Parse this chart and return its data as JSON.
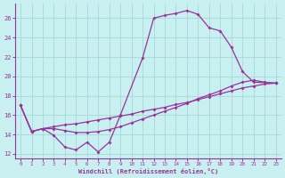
{
  "xlabel": "Windchill (Refroidissement éolien,°C)",
  "bg_color": "#c8f0f0",
  "grid_color": "#a8d8d8",
  "line_color": "#993399",
  "xlim": [
    -0.5,
    23.5
  ],
  "ylim": [
    11.5,
    27.5
  ],
  "yticks": [
    12,
    14,
    16,
    18,
    20,
    22,
    24,
    26
  ],
  "xticks": [
    0,
    1,
    2,
    3,
    4,
    5,
    6,
    7,
    8,
    9,
    10,
    11,
    12,
    13,
    14,
    15,
    16,
    17,
    18,
    19,
    20,
    21,
    22,
    23
  ],
  "curve1_x": [
    0,
    1,
    2,
    3,
    4,
    5,
    6,
    7,
    8,
    9,
    11,
    12,
    13,
    14,
    15,
    16,
    17,
    18,
    19,
    20,
    21,
    23
  ],
  "curve1_y": [
    17.0,
    14.3,
    14.6,
    13.9,
    12.7,
    12.4,
    13.2,
    12.2,
    13.2,
    16.0,
    21.9,
    26.0,
    26.3,
    26.5,
    26.8,
    26.4,
    25.0,
    24.7,
    23.0,
    20.5,
    19.4,
    19.3
  ],
  "curve2_x": [
    0,
    1,
    2,
    3,
    4,
    5,
    6,
    7,
    8,
    9,
    10,
    11,
    12,
    13,
    14,
    15,
    16,
    17,
    18,
    19,
    20,
    21,
    22,
    23
  ],
  "curve2_y": [
    17.0,
    14.3,
    14.6,
    14.6,
    14.4,
    14.2,
    14.2,
    14.3,
    14.5,
    14.8,
    15.2,
    15.6,
    16.0,
    16.4,
    16.8,
    17.2,
    17.7,
    18.1,
    18.5,
    19.0,
    19.4,
    19.6,
    19.4,
    19.3
  ],
  "curve3_x": [
    0,
    1,
    2,
    3,
    4,
    5,
    6,
    7,
    8,
    9,
    10,
    11,
    12,
    13,
    14,
    15,
    16,
    17,
    18,
    19,
    20,
    21,
    22,
    23
  ],
  "curve3_y": [
    17.0,
    14.3,
    14.6,
    14.8,
    15.0,
    15.1,
    15.3,
    15.5,
    15.7,
    15.9,
    16.1,
    16.4,
    16.6,
    16.8,
    17.1,
    17.3,
    17.6,
    17.9,
    18.2,
    18.5,
    18.8,
    19.0,
    19.2,
    19.3
  ]
}
